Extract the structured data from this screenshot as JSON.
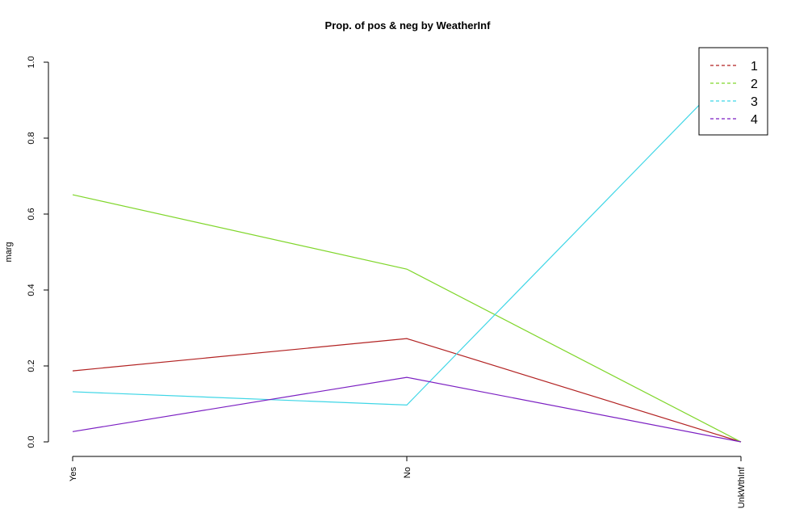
{
  "chart_data": {
    "type": "line",
    "title": "Prop. of pos & neg by WeatherInf",
    "xlabel": "",
    "ylabel": "marg",
    "categories": [
      "Yes",
      "No",
      "UnkWthInf"
    ],
    "ylim": [
      0,
      1
    ],
    "yticks": [
      "0.0",
      "0.2",
      "0.4",
      "0.6",
      "0.8",
      "1.0"
    ],
    "grid": false,
    "legend_position": "top-right",
    "series": [
      {
        "name": "1",
        "color": "#b22222",
        "values": [
          0.187,
          0.272,
          0.0
        ]
      },
      {
        "name": "2",
        "color": "#7fd62a",
        "values": [
          0.651,
          0.455,
          0.0
        ]
      },
      {
        "name": "3",
        "color": "#3ed6e6",
        "values": [
          0.132,
          0.097,
          1.0
        ]
      },
      {
        "name": "4",
        "color": "#7b1fc2",
        "values": [
          0.027,
          0.17,
          0.0
        ]
      }
    ]
  }
}
